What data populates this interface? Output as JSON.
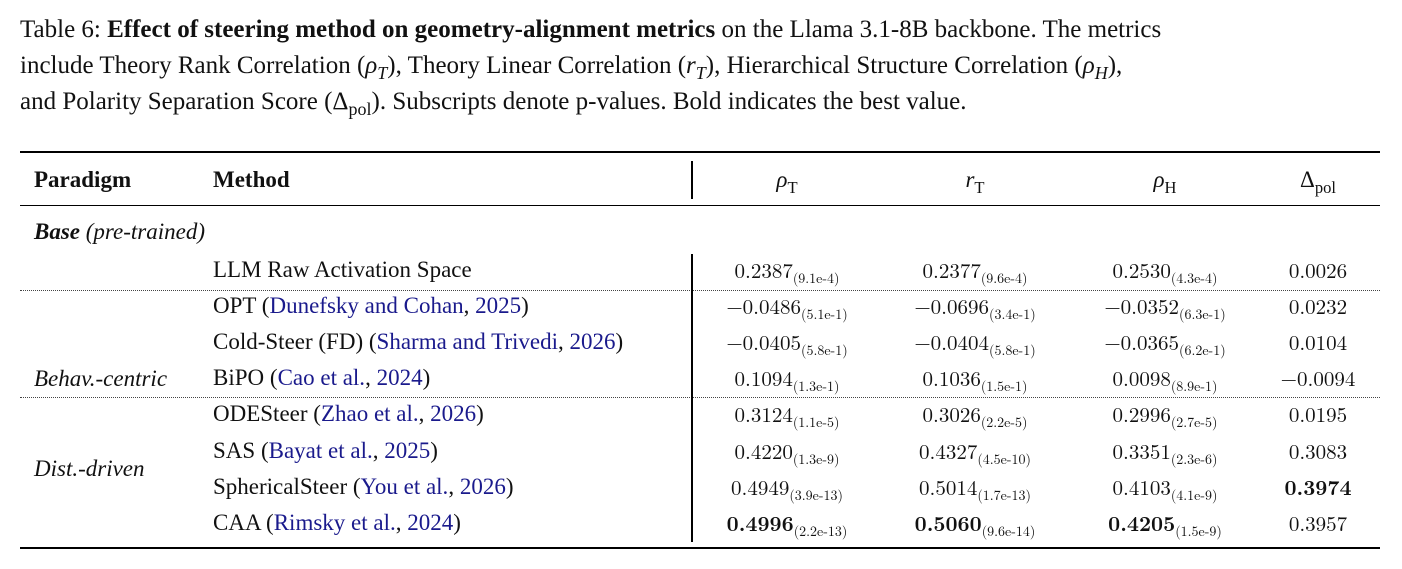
{
  "caption": {
    "prefix": "Table 6: ",
    "bold": "Effect of steering method on geometry-alignment metrics",
    "line1_rest": " on the Llama 3.1-8B backbone. The metrics",
    "line2_a": "include Theory Rank Correlation (",
    "line2_b": "), Theory Linear Correlation (",
    "line2_c": "), Hierarchical Structure Correlation (",
    "line2_d": "),",
    "line3_a": "and Polarity Separation Score (",
    "line3_b": "). Subscripts denote p-values. Bold indicates the best value.",
    "sym_rhoT": "ρ",
    "sym_rhoT_sub": "T",
    "sym_rT": "r",
    "sym_rT_sub": "T",
    "sym_rhoH": "ρ",
    "sym_rhoH_sub": "H",
    "sym_delta": "Δ",
    "sym_delta_sub": "pol"
  },
  "header": {
    "paradigm": "Paradigm",
    "method": "Method",
    "col1": "ρ",
    "col1_sub": "T",
    "col2": "r",
    "col2_sub": "T",
    "col3": "ρ",
    "col3_sub": "H",
    "col4": "Δ",
    "col4_sub": "pol"
  },
  "base_label": {
    "bold": "Base",
    "rest": " (pre-trained)"
  },
  "groups": {
    "behav": "Behav.-centric",
    "dist": "Dist.-driven"
  },
  "rows": [
    {
      "name": "LLM Raw Activation Space",
      "cite": "",
      "year": "",
      "open": "",
      "close": "",
      "v1": "0.2387",
      "p1": "(9.1e-4)",
      "v2": "0.2377",
      "p2": "(9.6e-4)",
      "v3": "0.2530",
      "p3": "(4.3e-4)",
      "v4": "0.0026"
    },
    {
      "name": "OPT ",
      "open": "(",
      "cite": "Dunefsky and Cohan",
      "year": "2025",
      "close": ")",
      "v1": "−0.0486",
      "p1": "(5.1e-1)",
      "v2": "−0.0696",
      "p2": "(3.4e-1)",
      "v3": "−0.0352",
      "p3": "(6.3e-1)",
      "v4": "0.0232"
    },
    {
      "name": "Cold-Steer (FD) ",
      "open": "(",
      "cite": "Sharma and Trivedi",
      "year": "2026",
      "close": ")",
      "v1": "−0.0405",
      "p1": "(5.8e-1)",
      "v2": "−0.0404",
      "p2": "(5.8e-1)",
      "v3": "−0.0365",
      "p3": "(6.2e-1)",
      "v4": "0.0104"
    },
    {
      "name": "BiPO ",
      "open": "(",
      "cite": "Cao et al.",
      "year": "2024",
      "close": ")",
      "v1": "0.1094",
      "p1": "(1.3e-1)",
      "v2": "0.1036",
      "p2": "(1.5e-1)",
      "v3": "0.0098",
      "p3": "(8.9e-1)",
      "v4": "−0.0094"
    },
    {
      "name": "ODESteer ",
      "open": "(",
      "cite": "Zhao et al.",
      "year": "2026",
      "close": ")",
      "v1": "0.3124",
      "p1": "(1.1e-5)",
      "v2": "0.3026",
      "p2": "(2.2e-5)",
      "v3": "0.2996",
      "p3": "(2.7e-5)",
      "v4": "0.0195"
    },
    {
      "name": "SAS ",
      "open": "(",
      "cite": "Bayat et al.",
      "year": "2025",
      "close": ")",
      "v1": "0.4220",
      "p1": "(1.3e-9)",
      "v2": "0.4327",
      "p2": "(4.5e-10)",
      "v3": "0.3351",
      "p3": "(2.3e-6)",
      "v4": "0.3083"
    },
    {
      "name": "SphericalSteer ",
      "open": "(",
      "cite": "You et al.",
      "year": "2026",
      "close": ")",
      "v1": "0.4949",
      "p1": "(3.9e-13)",
      "v2": "0.5014",
      "p2": "(1.7e-13)",
      "v3": "0.4103",
      "p3": "(4.1e-9)",
      "v4": "0.3974"
    },
    {
      "name": "CAA ",
      "open": "(",
      "cite": "Rimsky et al.",
      "year": "2024",
      "close": ")",
      "v1": "0.4996",
      "p1": "(2.2e-13)",
      "v2": "0.5060",
      "p2": "(9.6e-14)",
      "v3": "0.4205",
      "p3": "(1.5e-9)",
      "v4": "0.3957"
    }
  ],
  "citation_separator": ", "
}
